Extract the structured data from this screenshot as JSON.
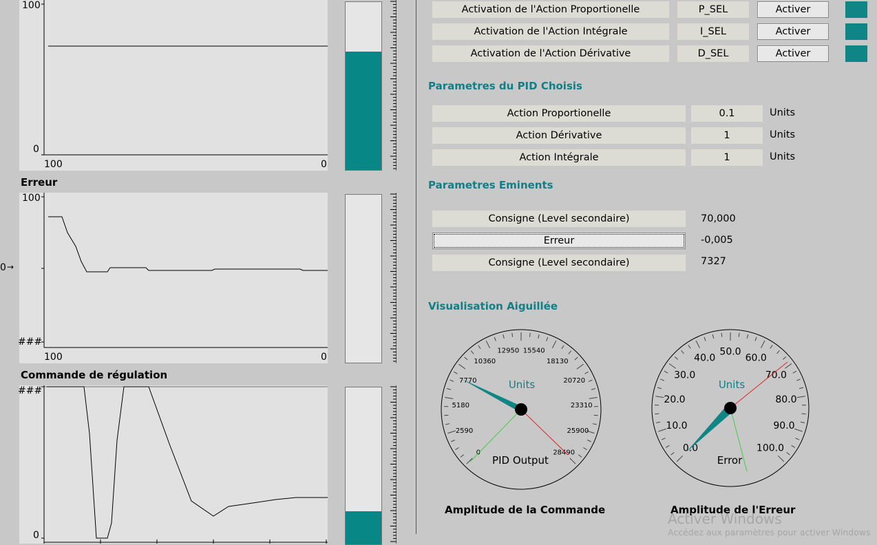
{
  "charts": {
    "chart1": {
      "ymax": "100",
      "ymin": "0",
      "xleft": "100",
      "xright": "0",
      "level": 0.7
    },
    "chart2": {
      "title": "Erreur",
      "ymax": "100",
      "ymid": "0",
      "ymin": "###",
      "xleft": "100",
      "xright": "0",
      "level": 0.0
    },
    "chart3": {
      "title": "Commande de régulation",
      "ymax": "###",
      "ymin": "0",
      "level": 0.2
    }
  },
  "chart_data": [
    {
      "type": "line",
      "title": "",
      "x_range": [
        100,
        0
      ],
      "ylim": [
        0,
        100
      ],
      "series": [
        {
          "values": [
            70,
            70
          ]
        }
      ]
    },
    {
      "type": "line",
      "title": "Erreur",
      "x_range": [
        100,
        0
      ],
      "ylim": [
        "###",
        100
      ]
    },
    {
      "type": "line",
      "title": "Commande de régulation",
      "ylim": [
        0,
        "###"
      ]
    }
  ],
  "activation": [
    {
      "label": "Activation de l'Action Proportionelle",
      "var": "P_SEL",
      "button": "Activer"
    },
    {
      "label": "Activation de l'Action Intégrale",
      "var": "I_SEL",
      "button": "Activer"
    },
    {
      "label": "Activation de l'Action Dérivative",
      "var": "D_SEL",
      "button": "Activer"
    }
  ],
  "pid_section": {
    "title": "Parametres du PID Choisis",
    "rows": [
      {
        "label": "Action Proportionelle",
        "value": "0.1",
        "unit": "Units"
      },
      {
        "label": "Action Dérivative",
        "value": "1",
        "unit": "Units"
      },
      {
        "label": "Action Intégrale",
        "value": "1",
        "unit": "Units"
      }
    ]
  },
  "eminents": {
    "title": "Parametres Eminents",
    "rows": [
      {
        "label": "Consigne (Level secondaire)",
        "value": "70,000"
      },
      {
        "label": "Erreur",
        "value": "-0,005"
      },
      {
        "label": "Consigne (Level secondaire)",
        "value": "7327"
      }
    ]
  },
  "gauges_section": {
    "title": "Visualisation Aiguillée"
  },
  "gauge1": {
    "units": "Units",
    "name": "PID Output",
    "caption": "Amplitude de la Commande",
    "ticks": [
      "0",
      "2590",
      "5180",
      "7770",
      "10360",
      "12950",
      "15540",
      "18130",
      "20720",
      "23310",
      "25900",
      "28490"
    ],
    "value": 7327
  },
  "gauge2": {
    "units": "Units",
    "name": "Error",
    "caption": "Amplitude de l'Erreur",
    "ticks": [
      "0.0",
      "10.0",
      "20.0",
      "30.0",
      "40.0",
      "50.0",
      "60.0",
      "70.0",
      "80.0",
      "90.0",
      "100.0"
    ],
    "value": -0.005
  },
  "colors": {
    "teal": "#0f8585",
    "plot_bg": "#e1e1e1",
    "window_bg": "#c8c8c8",
    "title_teal": "#117f86"
  },
  "watermark": {
    "line1": "Activer Windows",
    "line2": "Accédez aux paramètres pour activer Windows"
  }
}
